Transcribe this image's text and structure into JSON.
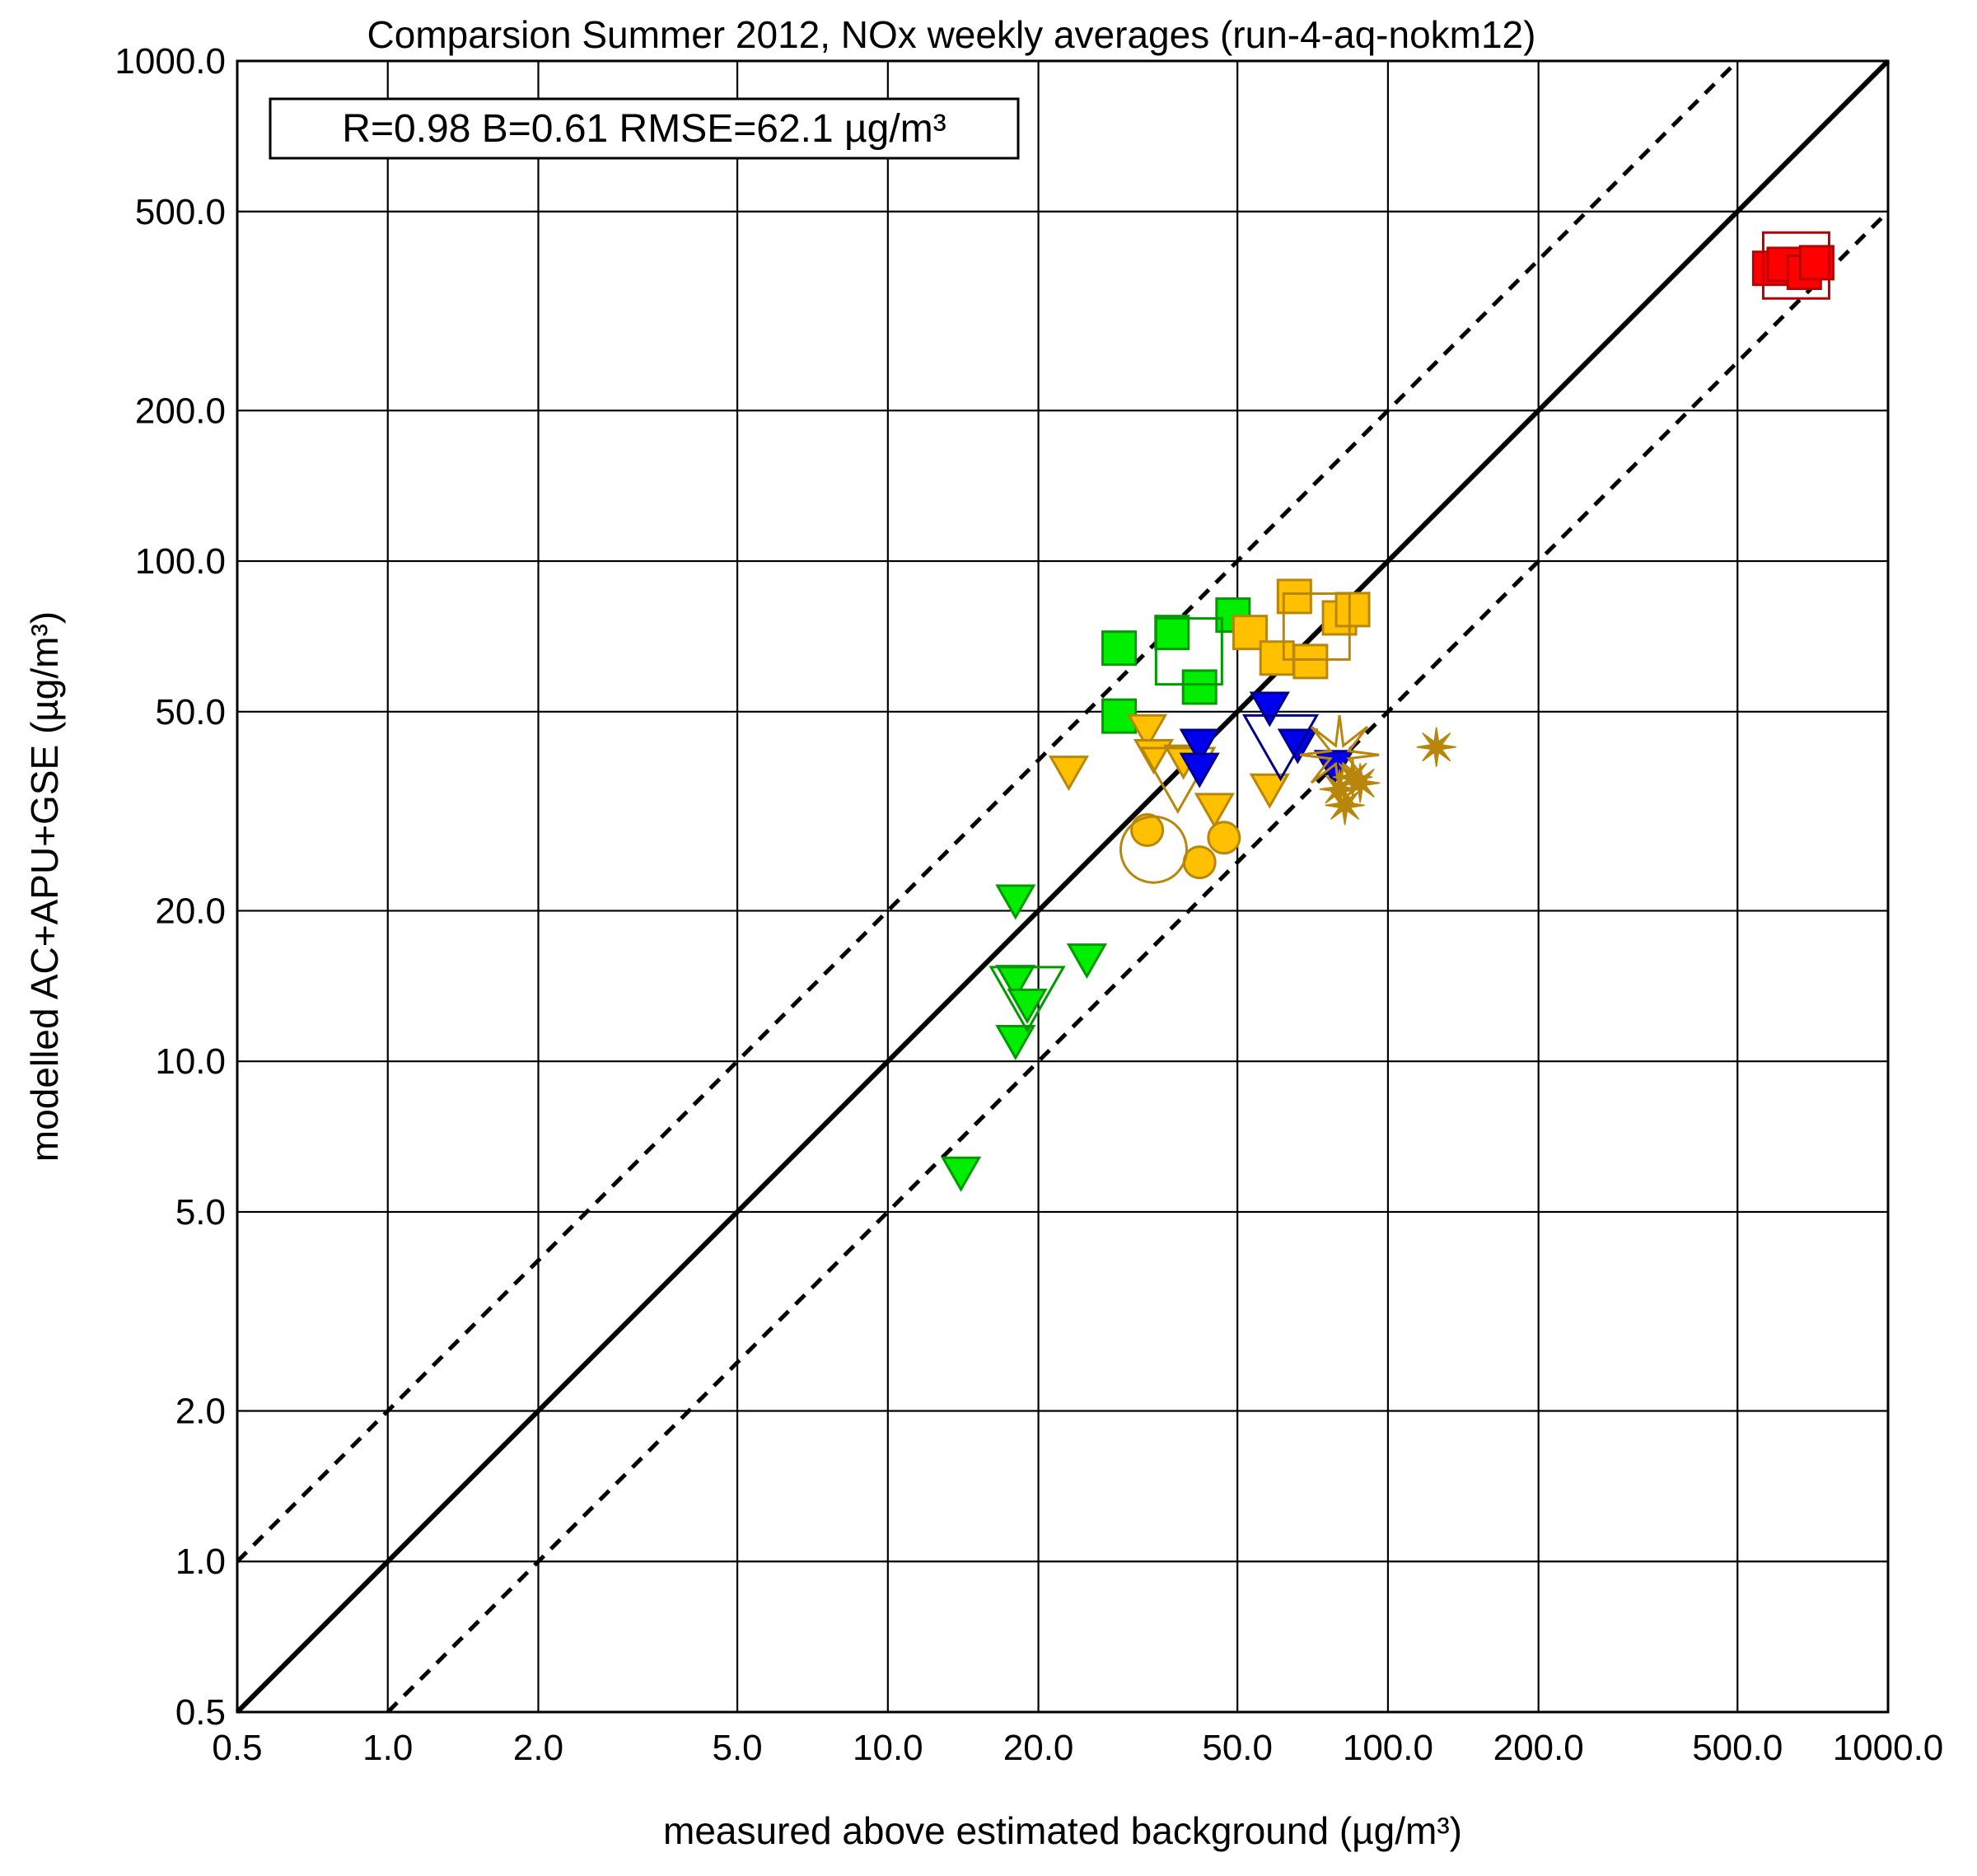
{
  "chart_data": {
    "type": "scatter",
    "title": "Comparsion Summer 2012, NOx weekly averages (run-4-aq-nokm12)",
    "xlabel": "measured above estimated background (µg/m³)",
    "ylabel": "modelled AC+APU+GSE (µg/m³)",
    "stats_box": "R=0.98 B=0.61 RMSE=62.1 µg/m³",
    "x_scale": "log",
    "y_scale": "log",
    "xlim": [
      0.5,
      1000
    ],
    "ylim": [
      0.5,
      1000
    ],
    "grid": true,
    "x_ticks": [
      0.5,
      1,
      2,
      5,
      10,
      20,
      50,
      100,
      200,
      500,
      1000
    ],
    "x_tick_labels": [
      "0.5",
      "1.0",
      "2.0",
      "5.0",
      "10.0",
      "20.0",
      "50.0",
      "100.0",
      "200.0",
      "500.0",
      "1000.0"
    ],
    "y_ticks": [
      0.5,
      1,
      2,
      5,
      10,
      20,
      50,
      100,
      200,
      500,
      1000
    ],
    "y_tick_labels": [
      "0.5",
      "1.0",
      "2.0",
      "5.0",
      "10.0",
      "20.0",
      "50.0",
      "100.0",
      "200.0",
      "500.0",
      "1000.0"
    ],
    "reference_lines": [
      {
        "style": "solid",
        "factor": 1
      },
      {
        "style": "dashed",
        "factor": 2
      },
      {
        "style": "dashed",
        "factor": 0.5
      }
    ],
    "colors": {
      "red": "#ff0000",
      "red_edge": "#bb0000",
      "green": "#00ee00",
      "green_edge": "#009900",
      "orange": "#ffc000",
      "orange_edge": "#b8860b",
      "blue": "#0000ee",
      "blue_edge": "#000088",
      "dark_gold": "#b8860b"
    },
    "series": [
      {
        "marker": "square",
        "color": "red",
        "filled": true,
        "points": [
          [
            580,
            385
          ],
          [
            620,
            392
          ],
          [
            680,
            378
          ],
          [
            720,
            395
          ]
        ]
      },
      {
        "marker": "square",
        "color": "red",
        "filled": false,
        "size": "large",
        "points": [
          [
            655,
            390
          ]
        ]
      },
      {
        "marker": "square",
        "color": "green",
        "filled": true,
        "points": [
          [
            29,
            67
          ],
          [
            37,
            72
          ],
          [
            42,
            56
          ],
          [
            49,
            78
          ],
          [
            29,
            49
          ]
        ]
      },
      {
        "marker": "square",
        "color": "green",
        "filled": false,
        "size": "large",
        "points": [
          [
            40,
            66
          ]
        ]
      },
      {
        "marker": "square",
        "color": "orange",
        "filled": true,
        "points": [
          [
            53,
            72
          ],
          [
            60,
            64
          ],
          [
            65,
            85
          ],
          [
            70,
            63
          ],
          [
            80,
            77
          ],
          [
            85,
            80
          ]
        ]
      },
      {
        "marker": "square",
        "color": "orange",
        "filled": false,
        "size": "large",
        "points": [
          [
            72,
            74
          ]
        ]
      },
      {
        "marker": "triangle-down",
        "color": "green",
        "filled": true,
        "points": [
          [
            14,
            6
          ],
          [
            18,
            21
          ],
          [
            18,
            14.5
          ],
          [
            18,
            11
          ],
          [
            19,
            13
          ],
          [
            25,
            16
          ]
        ]
      },
      {
        "marker": "triangle-down",
        "color": "green",
        "filled": false,
        "size": "large",
        "points": [
          [
            19,
            13.5
          ]
        ]
      },
      {
        "marker": "triangle-down",
        "color": "orange",
        "filled": true,
        "points": [
          [
            23,
            38
          ],
          [
            33,
            46
          ],
          [
            34,
            41
          ],
          [
            39,
            40
          ],
          [
            45,
            32
          ],
          [
            58,
            35
          ]
        ]
      },
      {
        "marker": "triangle-down",
        "color": "orange",
        "filled": false,
        "size": "large",
        "points": [
          [
            38,
            37
          ]
        ]
      },
      {
        "marker": "triangle-down",
        "color": "blue",
        "filled": true,
        "points": [
          [
            42,
            43
          ],
          [
            42,
            38.5
          ],
          [
            58,
            51
          ],
          [
            66,
            43
          ],
          [
            78,
            39
          ]
        ]
      },
      {
        "marker": "triangle-down",
        "color": "blue",
        "filled": false,
        "size": "large",
        "points": [
          [
            61,
            43
          ]
        ]
      },
      {
        "marker": "circle",
        "color": "orange",
        "filled": true,
        "points": [
          [
            33,
            29
          ],
          [
            42,
            25
          ],
          [
            47,
            28
          ]
        ]
      },
      {
        "marker": "circle",
        "color": "orange",
        "filled": false,
        "size": "large",
        "points": [
          [
            34,
            26.5
          ]
        ]
      },
      {
        "marker": "star",
        "color": "dark_gold",
        "filled": true,
        "points": [
          [
            80,
            35
          ],
          [
            82,
            32.5
          ],
          [
            85,
            37
          ],
          [
            88,
            36
          ],
          [
            125,
            42.5
          ]
        ]
      },
      {
        "marker": "star",
        "color": "dark_gold",
        "filled": false,
        "size": "large",
        "points": [
          [
            80,
            41
          ]
        ]
      }
    ]
  }
}
